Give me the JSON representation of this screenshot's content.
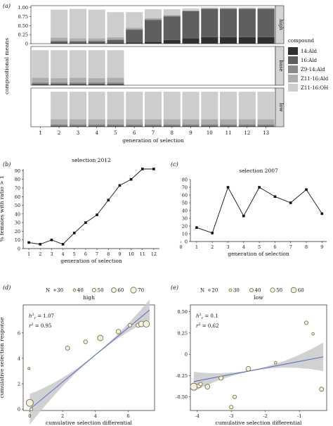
{
  "chart_data": [
    {
      "panel": "(a)",
      "type": "bar",
      "stacked": true,
      "ylabel": "compositional means",
      "xlabel": "generation of selection",
      "categories": [
        "1",
        "2",
        "3",
        "4",
        "5",
        "6",
        "7",
        "8",
        "9",
        "10",
        "11",
        "12",
        "13"
      ],
      "y_ticks": [
        "0",
        "0.25",
        "0.50",
        "0.75",
        "1.00"
      ],
      "ylim": [
        0,
        1
      ],
      "legend": {
        "title": "compound",
        "placement": "right",
        "items": [
          {
            "name": "14:Ald",
            "color": "#303030"
          },
          {
            "name": "16:Ald",
            "color": "#5f5f5f"
          },
          {
            "name": "Z9-14:Ald",
            "color": "#8a8a8a"
          },
          {
            "name": "Z11-16:Ald",
            "color": "#adadad"
          },
          {
            "name": "Z11-16:OH",
            "color": "#cdcdcd"
          }
        ]
      },
      "facets": [
        {
          "label": "high",
          "bars": [
            {
              "cat": "2",
              "values": [
                0.01,
                0.05,
                0.03,
                0.08,
                0.77
              ]
            },
            {
              "cat": "3",
              "values": [
                0.01,
                0.04,
                0.03,
                0.07,
                0.81
              ]
            },
            {
              "cat": "4",
              "values": [
                0.01,
                0.05,
                0.03,
                0.06,
                0.79
              ]
            },
            {
              "cat": "5",
              "values": [
                0.02,
                0.08,
                0.03,
                0.05,
                0.69
              ]
            },
            {
              "cat": "6",
              "values": [
                0.03,
                0.35,
                0.02,
                0.04,
                0.43
              ]
            },
            {
              "cat": "7",
              "values": [
                0.05,
                0.6,
                0.02,
                0.03,
                0.25
              ]
            },
            {
              "cat": "8",
              "values": [
                0.1,
                0.65,
                0.02,
                0.02,
                0.16
              ]
            },
            {
              "cat": "9",
              "values": [
                0.15,
                0.75,
                0.01,
                0.01,
                0.05
              ]
            },
            {
              "cat": "10",
              "values": [
                0.18,
                0.78,
                0.01,
                0.01,
                0.02
              ]
            },
            {
              "cat": "11",
              "values": [
                0.18,
                0.78,
                0.01,
                0.01,
                0.02
              ]
            },
            {
              "cat": "12",
              "values": [
                0.18,
                0.78,
                0.01,
                0.01,
                0.02
              ]
            },
            {
              "cat": "13",
              "values": [
                0.18,
                0.78,
                0.01,
                0.01,
                0.02
              ]
            }
          ]
        },
        {
          "label": "base",
          "bars": [
            {
              "cat": "1",
              "values": [
                0.01,
                0.03,
                0.04,
                0.12,
                0.75
              ]
            },
            {
              "cat": "2",
              "values": [
                0.01,
                0.03,
                0.04,
                0.11,
                0.76
              ]
            },
            {
              "cat": "3",
              "values": [
                0.01,
                0.03,
                0.04,
                0.12,
                0.75
              ]
            },
            {
              "cat": "4",
              "values": [
                0.01,
                0.03,
                0.04,
                0.11,
                0.76
              ]
            },
            {
              "cat": "5",
              "values": [
                0.01,
                0.03,
                0.04,
                0.12,
                0.75
              ]
            }
          ]
        },
        {
          "label": "low",
          "bars": [
            {
              "cat": "2",
              "values": [
                0.01,
                0.02,
                0.04,
                0.13,
                0.75
              ]
            },
            {
              "cat": "3",
              "values": [
                0.01,
                0.02,
                0.04,
                0.13,
                0.75
              ]
            },
            {
              "cat": "4",
              "values": [
                0.01,
                0.02,
                0.04,
                0.13,
                0.75
              ]
            },
            {
              "cat": "5",
              "values": [
                0.01,
                0.02,
                0.04,
                0.13,
                0.75
              ]
            },
            {
              "cat": "6",
              "values": [
                0.01,
                0.02,
                0.04,
                0.13,
                0.75
              ]
            },
            {
              "cat": "7",
              "values": [
                0.01,
                0.02,
                0.04,
                0.13,
                0.75
              ]
            },
            {
              "cat": "8",
              "values": [
                0.01,
                0.02,
                0.04,
                0.13,
                0.75
              ]
            },
            {
              "cat": "9",
              "values": [
                0.01,
                0.02,
                0.04,
                0.13,
                0.75
              ]
            },
            {
              "cat": "10",
              "values": [
                0.01,
                0.02,
                0.04,
                0.13,
                0.75
              ]
            },
            {
              "cat": "11",
              "values": [
                0.01,
                0.02,
                0.04,
                0.13,
                0.75
              ]
            },
            {
              "cat": "12",
              "values": [
                0.01,
                0.02,
                0.04,
                0.13,
                0.75
              ]
            },
            {
              "cat": "13",
              "values": [
                0.01,
                0.02,
                0.04,
                0.13,
                0.75
              ]
            }
          ]
        }
      ]
    },
    {
      "panel": "(b)",
      "type": "line",
      "title": "selection 2012",
      "xlabel": "generation of selection",
      "ylabel": "% females with ratio > 1",
      "x": [
        1,
        2,
        3,
        4,
        5,
        6,
        7,
        8,
        9,
        10,
        11,
        12
      ],
      "y": [
        7,
        5,
        10,
        5,
        18,
        30,
        39,
        56,
        73,
        80,
        92,
        92
      ],
      "xlim": [
        0.5,
        12.5
      ],
      "ylim": [
        0,
        92
      ],
      "x_ticks": [
        "1",
        "2",
        "3",
        "4",
        "5",
        "6",
        "7",
        "8",
        "9",
        "10",
        "11",
        "12"
      ],
      "y_ticks": [
        "0",
        "10",
        "20",
        "30",
        "40",
        "50",
        "60",
        "70",
        "80",
        "90"
      ]
    },
    {
      "panel": "(c)",
      "type": "line",
      "title": "selection 2007",
      "xlabel": "generation of selection",
      "x": [
        1,
        2,
        3,
        4,
        5,
        6,
        7,
        8,
        9
      ],
      "y": [
        18,
        11,
        70,
        33,
        70,
        58,
        50,
        67,
        36
      ],
      "xlim": [
        0.6,
        9.3
      ],
      "ylim": [
        0,
        80
      ],
      "x_ticks": [
        "0",
        "1",
        "2",
        "3",
        "4",
        "5",
        "6",
        "7",
        "8",
        "9"
      ],
      "y_ticks": [
        "0",
        "10",
        "20",
        "30",
        "40",
        "50",
        "60",
        "70",
        "80"
      ]
    },
    {
      "panel": "(d)",
      "type": "scatter",
      "title": "high",
      "xlabel": "cumulative selection differential",
      "ylabel": "cumulative selection response",
      "size_legend": {
        "label": "N",
        "values": [
          "30",
          "40",
          "50",
          "60",
          "70"
        ]
      },
      "annotation": {
        "h2": "1.07",
        "r2": "0.95"
      },
      "points": [
        {
          "x": 0.0,
          "y": 0.5,
          "n": 65
        },
        {
          "x": 0.1,
          "y": 0.0,
          "n": 35
        },
        {
          "x": -0.05,
          "y": 3.2,
          "n": 30
        },
        {
          "x": 2.3,
          "y": 4.8,
          "n": 45
        },
        {
          "x": 3.4,
          "y": 5.3,
          "n": 42
        },
        {
          "x": 4.3,
          "y": 5.6,
          "n": 55
        },
        {
          "x": 5.4,
          "y": 6.1,
          "n": 48
        },
        {
          "x": 6.1,
          "y": 6.6,
          "n": 40
        },
        {
          "x": 6.6,
          "y": 6.6,
          "n": 45
        },
        {
          "x": 6.8,
          "y": 6.7,
          "n": 55
        },
        {
          "x": 7.1,
          "y": 6.7,
          "n": 60
        }
      ],
      "fit": {
        "x0": 0,
        "y0": 0,
        "x1": 7.3,
        "y1": 7.8
      },
      "xlim": [
        -0.4,
        7.6
      ],
      "ylim": [
        -0.1,
        8.2
      ],
      "x_ticks": [
        "0",
        "2",
        "4",
        "6"
      ],
      "y_ticks": [
        "0",
        "2",
        "4",
        "6"
      ]
    },
    {
      "panel": "(e)",
      "type": "scatter",
      "title": "low",
      "xlabel": "cumulative selection differential",
      "size_legend": {
        "label": "N",
        "values": [
          "20",
          "30",
          "40",
          "50",
          "60"
        ]
      },
      "annotation": {
        "h2": "0.1",
        "r2": "0.62"
      },
      "points": [
        {
          "x": -4.1,
          "y": -0.38,
          "n": 60
        },
        {
          "x": -3.95,
          "y": -0.37,
          "n": 35
        },
        {
          "x": -3.9,
          "y": -0.35,
          "n": 30
        },
        {
          "x": -3.7,
          "y": -0.38,
          "n": 40
        },
        {
          "x": -3.3,
          "y": -0.28,
          "n": 35
        },
        {
          "x": -3.0,
          "y": -0.62,
          "n": 30
        },
        {
          "x": -2.9,
          "y": -0.5,
          "n": 30
        },
        {
          "x": -2.5,
          "y": -0.17,
          "n": 40
        },
        {
          "x": -1.7,
          "y": -0.1,
          "n": 20
        },
        {
          "x": -0.8,
          "y": 0.37,
          "n": 30
        },
        {
          "x": -0.6,
          "y": 0.24,
          "n": 20
        },
        {
          "x": -0.35,
          "y": -0.41,
          "n": 35
        }
      ],
      "fit": {
        "x0": -4.1,
        "y0": -0.32,
        "x1": -0.3,
        "y1": -0.03
      },
      "xlim": [
        -4.2,
        -0.2
      ],
      "ylim": [
        -0.66,
        0.58
      ],
      "x_ticks": [
        "-4",
        "-3",
        "-2",
        "-1"
      ],
      "y_ticks": [
        "-0.50",
        "-0.25",
        "0",
        "0.25",
        "0.50"
      ]
    }
  ]
}
